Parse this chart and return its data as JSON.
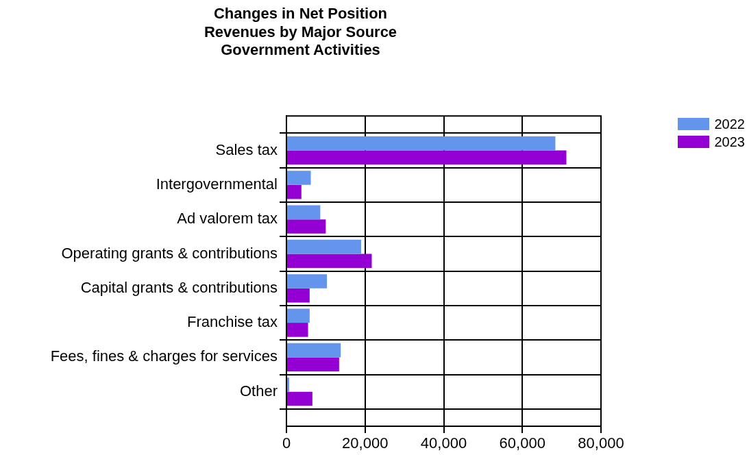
{
  "chart_data": {
    "type": "bar",
    "orientation": "horizontal",
    "title": "Changes in Net Position\nRevenues by Major Source\nGovernment Activities",
    "categories": [
      "Sales tax",
      "Intergovernmental",
      "Ad valorem tax",
      "Operating grants & contributions",
      "Capital grants & contributions",
      "Franchise tax",
      "Fees, fines & charges for services",
      "Other"
    ],
    "series": [
      {
        "name": "2022",
        "color": "#6495ed",
        "values": [
          68400,
          6200,
          8600,
          19000,
          10300,
          5900,
          13800,
          700
        ]
      },
      {
        "name": "2023",
        "color": "#9400d3",
        "values": [
          71200,
          3800,
          10000,
          21700,
          5900,
          5500,
          13400,
          6600
        ]
      }
    ],
    "xlim": [
      0,
      80000
    ],
    "xticks": [
      {
        "value": 0,
        "label": "0"
      },
      {
        "value": 20000,
        "label": "20,000"
      },
      {
        "value": 40000,
        "label": "40,000"
      },
      {
        "value": 60000,
        "label": "60,000"
      },
      {
        "value": 80000,
        "label": "80,000"
      }
    ],
    "grid": true,
    "legend": "top right"
  }
}
